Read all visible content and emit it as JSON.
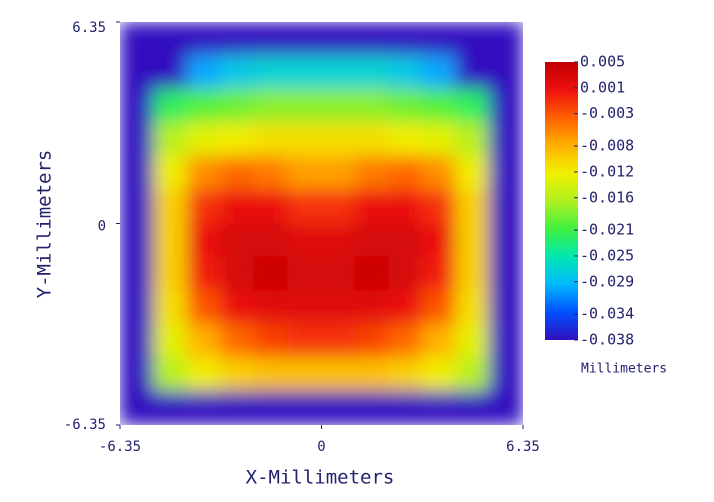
{
  "chart_data": {
    "type": "heatmap",
    "xlabel": "X-Millimeters",
    "ylabel": "Y-Millimeters",
    "xlim": [
      -6.35,
      6.35
    ],
    "ylim": [
      -6.35,
      6.35
    ],
    "xticks": [
      -6.35,
      0,
      6.35
    ],
    "yticks": [
      -6.35,
      0,
      6.35
    ],
    "x": [
      -5.82,
      -4.76,
      -3.7,
      -2.65,
      -1.59,
      -0.53,
      0.53,
      1.59,
      2.65,
      3.7,
      4.76,
      5.82
    ],
    "y": [
      5.82,
      4.76,
      3.7,
      2.65,
      1.59,
      0.53,
      -0.53,
      -1.59,
      -2.65,
      -3.7,
      -4.76,
      -5.82
    ],
    "z": [
      [
        -0.038,
        -0.038,
        -0.038,
        -0.038,
        -0.038,
        -0.038,
        -0.038,
        -0.038,
        -0.038,
        -0.038,
        -0.038,
        -0.038
      ],
      [
        -0.038,
        -0.038,
        -0.03,
        -0.028,
        -0.027,
        -0.027,
        -0.027,
        -0.027,
        -0.028,
        -0.03,
        -0.038,
        -0.038
      ],
      [
        -0.038,
        -0.022,
        -0.02,
        -0.019,
        -0.018,
        -0.018,
        -0.018,
        -0.018,
        -0.019,
        -0.02,
        -0.022,
        -0.038
      ],
      [
        -0.038,
        -0.016,
        -0.013,
        -0.012,
        -0.011,
        -0.011,
        -0.011,
        -0.011,
        -0.012,
        -0.013,
        -0.016,
        -0.038
      ],
      [
        -0.038,
        -0.012,
        -0.006,
        -0.004,
        -0.005,
        -0.007,
        -0.007,
        -0.005,
        -0.004,
        -0.006,
        -0.012,
        -0.038
      ],
      [
        -0.038,
        -0.01,
        -0.001,
        0.001,
        0.001,
        -0.001,
        -0.001,
        0.001,
        0.001,
        -0.001,
        -0.01,
        -0.038
      ],
      [
        -0.038,
        -0.01,
        0.001,
        0.003,
        0.003,
        0.002,
        0.002,
        0.003,
        0.003,
        0.001,
        -0.01,
        -0.038
      ],
      [
        -0.038,
        -0.01,
        0,
        0.003,
        0.004,
        0.003,
        0.003,
        0.004,
        0.003,
        0,
        -0.01,
        -0.038
      ],
      [
        -0.038,
        -0.011,
        -0.003,
        0.001,
        0.002,
        0.002,
        0.002,
        0.002,
        0.001,
        -0.003,
        -0.011,
        -0.038
      ],
      [
        -0.038,
        -0.013,
        -0.008,
        -0.004,
        -0.002,
        -0.001,
        -0.001,
        -0.002,
        -0.004,
        -0.008,
        -0.013,
        -0.038
      ],
      [
        -0.038,
        -0.016,
        -0.012,
        -0.01,
        -0.009,
        -0.009,
        -0.009,
        -0.009,
        -0.01,
        -0.012,
        -0.016,
        -0.038
      ],
      [
        -0.038,
        -0.038,
        -0.038,
        -0.038,
        -0.038,
        -0.038,
        -0.038,
        -0.038,
        -0.038,
        -0.038,
        -0.038,
        -0.038
      ]
    ],
    "colormap": [
      "#3010c0",
      "#0050ff",
      "#00b8ff",
      "#00e8b0",
      "#40f040",
      "#b0f020",
      "#f0f000",
      "#ffb000",
      "#ff6000",
      "#ee1010",
      "#c00000"
    ],
    "colorbar_lim": [
      -0.038,
      0.005
    ],
    "colorbar_ticks": [
      0.005,
      0.001,
      -0.003,
      -0.008,
      -0.012,
      -0.016,
      -0.021,
      -0.025,
      -0.029,
      -0.034,
      -0.038
    ],
    "colorbar_label": "Millimeters"
  }
}
